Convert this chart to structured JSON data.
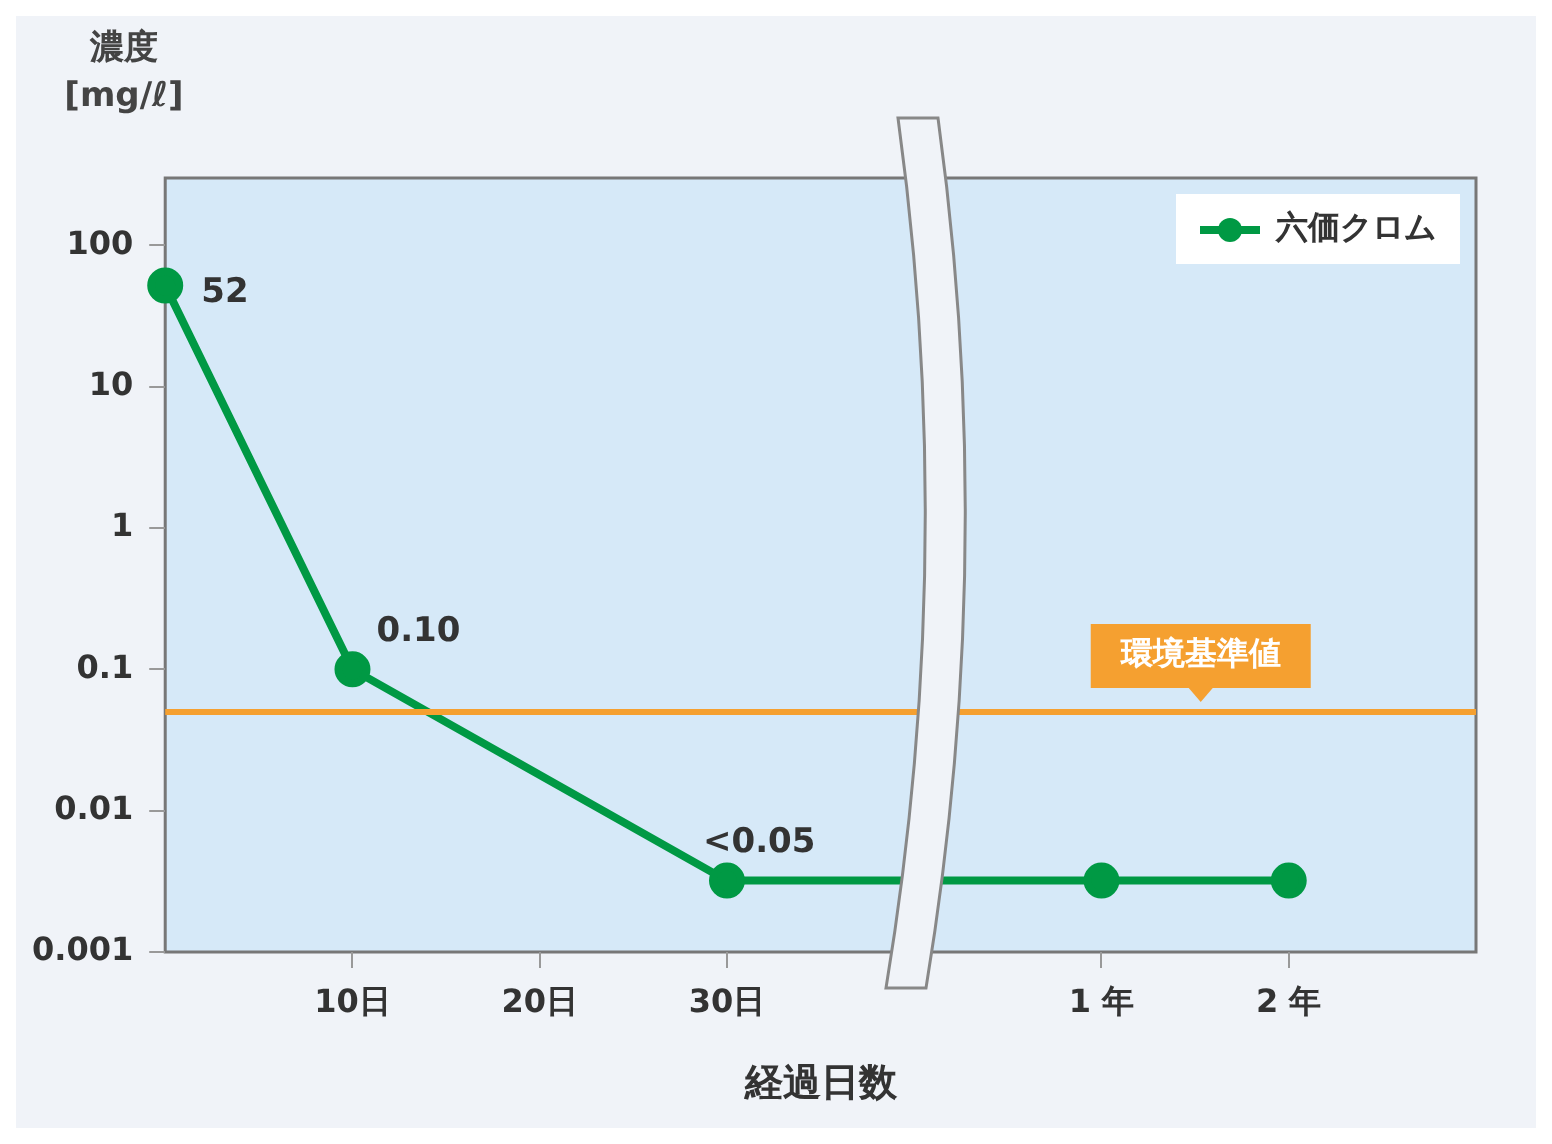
{
  "chart_data": {
    "type": "line",
    "ylabel": "濃度\n[mg/ℓ]",
    "xlabel": "経過日数",
    "categories": [
      null,
      "10日",
      "20日",
      "30日",
      null,
      "1 年",
      "2 年",
      null
    ],
    "series": [
      {
        "name": "六価クロム",
        "color": "#009944",
        "values": [
          52,
          0.1,
          null,
          0.0032,
          null,
          0.0032,
          0.0032,
          null
        ],
        "value_labels": [
          "52",
          "0.10",
          null,
          "<0.05",
          null,
          null,
          null,
          null
        ]
      }
    ],
    "log": "y",
    "ylim": [
      0.001,
      300
    ],
    "yticks": [
      0.001,
      0.01,
      0.1,
      1,
      10,
      100
    ],
    "ref_lines": [
      {
        "axis": "y",
        "value": 0.05,
        "label": "環境基準値",
        "color": "#f5a030"
      }
    ],
    "grid": false,
    "legend": "top right",
    "marker": "circle",
    "line_style": "solid"
  }
}
